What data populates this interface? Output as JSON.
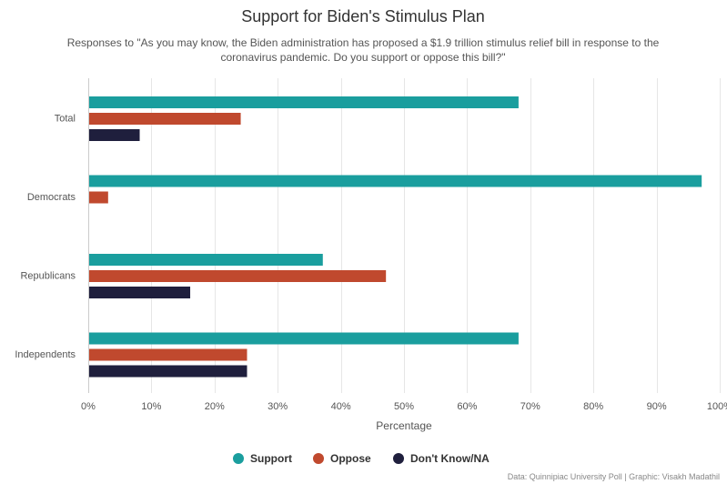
{
  "chart_data": {
    "type": "bar",
    "orientation": "horizontal",
    "title": "Support for Biden's Stimulus Plan",
    "subtitle_lines": [
      "Responses to \"As you may know, the Biden administration has proposed a $1.9 trillion stimulus relief bill in response to the",
      "coronavirus pandemic. Do you support or oppose this bill?\""
    ],
    "categories": [
      "Total",
      "Democrats",
      "Republicans",
      "Independents"
    ],
    "series": [
      {
        "name": "Support",
        "color": "#1a9e9e",
        "values": [
          68,
          97,
          37,
          68
        ]
      },
      {
        "name": "Oppose",
        "color": "#c0492e",
        "values": [
          24,
          3,
          47,
          25
        ]
      },
      {
        "name": "Don't Know/NA",
        "color": "#1f1f3d",
        "values": [
          8,
          0,
          16,
          25
        ]
      }
    ],
    "xlabel": "Percentage",
    "xlim": [
      0,
      100
    ],
    "xticks": [
      "0%",
      "10%",
      "20%",
      "30%",
      "40%",
      "50%",
      "60%",
      "70%",
      "80%",
      "90%",
      "100%"
    ],
    "grid": true,
    "legend_position": "bottom-center",
    "credits": "Data: Quinnipiac University Poll | Graphic: Visakh Madathil"
  }
}
